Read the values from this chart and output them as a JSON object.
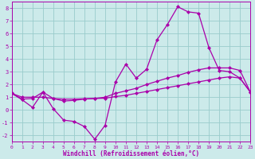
{
  "xlabel": "Windchill (Refroidissement éolien,°C)",
  "bg_color": "#cceaea",
  "line_color": "#aa00aa",
  "grid_color": "#99cccc",
  "x_data": [
    0,
    1,
    2,
    3,
    4,
    5,
    6,
    7,
    8,
    9,
    10,
    11,
    12,
    13,
    14,
    15,
    16,
    17,
    18,
    19,
    20,
    21,
    22,
    23
  ],
  "line1": [
    1.3,
    0.8,
    0.2,
    1.4,
    0.1,
    -0.8,
    -0.9,
    -1.3,
    -2.3,
    -1.2,
    2.2,
    3.6,
    2.5,
    3.2,
    5.5,
    6.7,
    8.1,
    7.7,
    7.6,
    4.9,
    3.1,
    3.0,
    2.5,
    1.4
  ],
  "line2": [
    1.3,
    0.85,
    0.9,
    1.4,
    0.9,
    0.7,
    0.75,
    0.85,
    0.9,
    1.0,
    1.3,
    1.5,
    1.7,
    2.0,
    2.25,
    2.5,
    2.7,
    2.95,
    3.15,
    3.3,
    3.3,
    3.3,
    3.1,
    1.4
  ],
  "line3": [
    1.3,
    1.0,
    1.0,
    1.0,
    0.9,
    0.85,
    0.85,
    0.88,
    0.9,
    0.92,
    1.05,
    1.15,
    1.3,
    1.45,
    1.6,
    1.75,
    1.9,
    2.05,
    2.2,
    2.35,
    2.5,
    2.6,
    2.5,
    1.4
  ],
  "xlim": [
    0,
    23
  ],
  "ylim": [
    -2.5,
    8.5
  ],
  "yticks": [
    -2,
    -1,
    0,
    1,
    2,
    3,
    4,
    5,
    6,
    7,
    8
  ],
  "xticks": [
    0,
    1,
    2,
    3,
    4,
    5,
    6,
    7,
    8,
    9,
    10,
    11,
    12,
    13,
    14,
    15,
    16,
    17,
    18,
    19,
    20,
    21,
    22,
    23
  ]
}
